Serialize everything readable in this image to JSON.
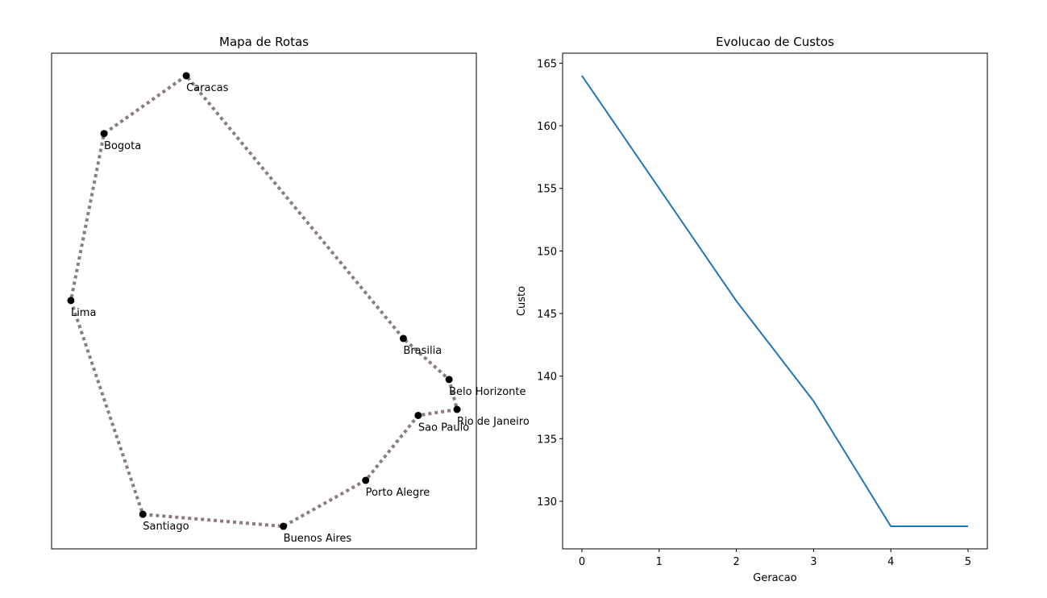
{
  "chart_data": [
    {
      "type": "route",
      "title": "Mapa de Rotas",
      "labels": [
        "Caracas",
        "Bogota",
        "Lima",
        "Santiago",
        "Buenos Aires",
        "Porto Alegre",
        "Sao Paulo",
        "Rio de Janeiro",
        "Belo Horizonte",
        "Brasilia"
      ],
      "x": [
        -66.9,
        -74.1,
        -77.0,
        -70.7,
        -58.4,
        -51.2,
        -46.6,
        -43.2,
        -43.9,
        -47.9
      ],
      "values": [
        10.5,
        4.7,
        -12.0,
        -33.4,
        -34.6,
        -30.0,
        -23.5,
        -22.9,
        -19.9,
        -15.8
      ],
      "color": "#000000",
      "line_color": "#8c7b80",
      "xlim": [
        -78.69,
        -41.51
      ],
      "ylim": [
        -36.855,
        12.755
      ]
    },
    {
      "type": "line",
      "title": "Evolucao de Custos",
      "xlabel": "Geracao",
      "ylabel": "Custo",
      "x": [
        0,
        1,
        2,
        3,
        4,
        5
      ],
      "values": [
        164,
        155,
        146,
        138,
        128,
        128
      ],
      "color": "#1f77b4",
      "xlim": [
        -0.25,
        5.25
      ],
      "ylim": [
        126.2,
        165.8
      ],
      "xticks": [
        0,
        1,
        2,
        3,
        4,
        5
      ],
      "yticks": [
        130,
        135,
        140,
        145,
        150,
        155,
        160,
        165
      ]
    }
  ]
}
